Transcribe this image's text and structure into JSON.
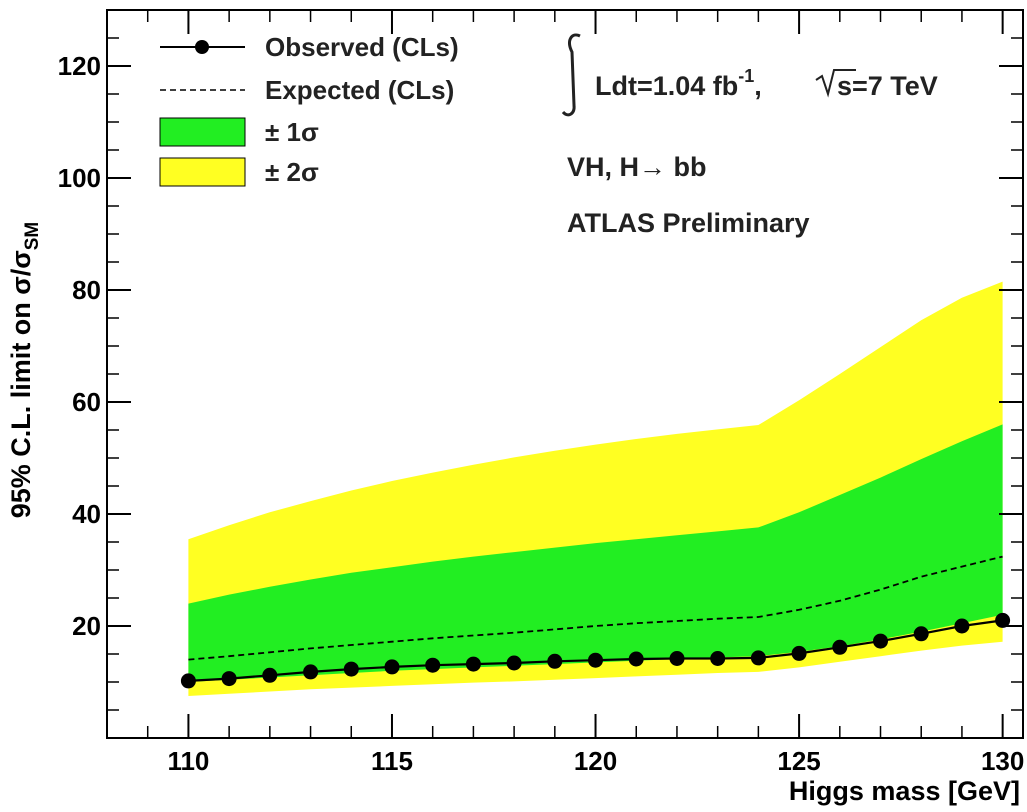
{
  "chart_data": {
    "type": "line",
    "xlabel": "Higgs mass [GeV]",
    "ylabel": "95% C.L. limit on σ/σ",
    "ylabel_sub": "SM",
    "xlim": [
      108,
      130.5
    ],
    "ylim": [
      0,
      130
    ],
    "x_ticks": [
      110,
      115,
      120,
      125,
      130
    ],
    "y_ticks": [
      20,
      40,
      60,
      80,
      100,
      120
    ],
    "x": [
      110,
      111,
      112,
      113,
      114,
      115,
      116,
      117,
      118,
      119,
      120,
      121,
      122,
      123,
      124,
      125,
      126,
      127,
      128,
      129,
      130
    ],
    "observed": [
      10.2,
      10.6,
      11.2,
      11.8,
      12.3,
      12.7,
      13.0,
      13.2,
      13.4,
      13.7,
      13.9,
      14.1,
      14.2,
      14.2,
      14.3,
      15.1,
      16.2,
      17.3,
      18.6,
      20.0,
      21.0
    ],
    "expected": [
      14.0,
      14.6,
      15.3,
      16.0,
      16.6,
      17.2,
      17.8,
      18.3,
      18.8,
      19.4,
      20.0,
      20.5,
      20.9,
      21.3,
      21.6,
      22.9,
      24.5,
      26.5,
      28.8,
      30.6,
      32.4
    ],
    "band_1sigma_low": [
      10.0,
      10.4,
      10.8,
      11.2,
      11.6,
      12.0,
      12.3,
      12.6,
      12.9,
      13.2,
      13.5,
      13.8,
      14.1,
      14.4,
      14.6,
      15.4,
      16.4,
      17.6,
      19.0,
      20.5,
      22.0
    ],
    "band_1sigma_high": [
      24.0,
      25.6,
      27.0,
      28.3,
      29.5,
      30.5,
      31.5,
      32.4,
      33.2,
      34.0,
      34.8,
      35.5,
      36.2,
      36.9,
      37.6,
      40.3,
      43.4,
      46.5,
      49.8,
      53.0,
      56.0
    ],
    "band_2sigma_low": [
      7.5,
      7.9,
      8.3,
      8.7,
      9.0,
      9.3,
      9.6,
      9.9,
      10.1,
      10.4,
      10.7,
      11.0,
      11.3,
      11.6,
      11.8,
      12.6,
      13.6,
      14.6,
      15.6,
      16.5,
      17.2
    ],
    "band_2sigma_high": [
      35.5,
      38.0,
      40.3,
      42.3,
      44.2,
      45.9,
      47.4,
      48.8,
      50.1,
      51.3,
      52.4,
      53.4,
      54.3,
      55.1,
      55.9,
      60.3,
      65.0,
      69.8,
      74.6,
      78.6,
      81.5
    ],
    "legend": {
      "observed": "Observed (CLs)",
      "expected": "Expected (CLs)",
      "one_sigma": "± 1σ",
      "two_sigma": "± 2σ"
    },
    "annotations": {
      "lumi": "Ldt=1.04 fb",
      "lumi_sup": "-1",
      "energy": "s=7 TeV",
      "channel": "VH, H→ bb",
      "experiment": "ATLAS Preliminary"
    },
    "colors": {
      "one_sigma": "#22ee22",
      "two_sigma": "#ffff22",
      "line": "#000000"
    }
  }
}
